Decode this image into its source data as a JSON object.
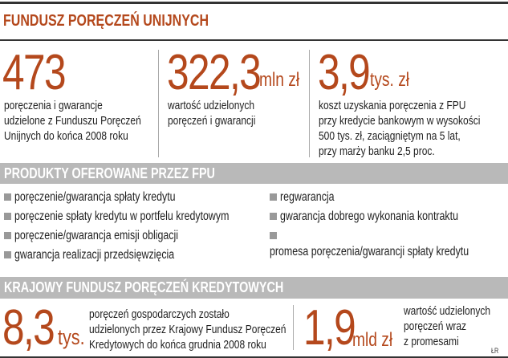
{
  "title": "FUNDUSZ PORĘCZEŃ UNIJNYCH",
  "accent_color": "#b4481c",
  "band_color": "#b9b9b9",
  "stats": [
    {
      "value": "473",
      "unit": "",
      "lines": [
        "poręczenia i gwarancje",
        "udzielone z Funduszu Poręczeń",
        "Unijnych do końca 2008 roku"
      ]
    },
    {
      "value": "322,3",
      "unit": "mln zł",
      "lines": [
        "wartość udzielonych",
        "poręczeń i gwarancji"
      ]
    },
    {
      "value": "3,9",
      "unit": "tys. zł",
      "lines": [
        "koszt uzyskania poręczenia z FPU",
        "przy kredycie bankowym w wysokości",
        "500 tys. zł, zaciągniętym na 5 lat,",
        "przy marży banku 2,5 proc."
      ]
    }
  ],
  "products": {
    "heading": "PRODUKTY OFEROWANE PRZEZ FPU",
    "items": [
      "poręczenie/gwarancja spłaty kredytu",
      "poręczenie spłaty kredytu w portfelu kredytowym",
      "poręczenie/gwarancja emisji obligacji",
      "gwarancja realizacji przedsięwzięcia",
      "regwarancja",
      "gwarancja dobrego wykonania kontraktu",
      "promesa poręczenia/gwarancji spłaty kredytu"
    ]
  },
  "kfpk": {
    "heading": "KRAJOWY FUNDUSZ PORĘCZEŃ KREDYTOWYCH",
    "stats": [
      {
        "value": "8,3",
        "unit": "tys.",
        "lines": [
          "poręczeń gospodarczych zostało",
          "udzielonych przez Krajowy Fundusz Poręczeń",
          "Kredytowych do końca grudnia 2008 roku"
        ]
      },
      {
        "value": "1,9",
        "unit": "mld zł",
        "lines": [
          "wartość udzielonych",
          "poręczeń wraz",
          "z promesami"
        ]
      }
    ]
  },
  "author": "ŁR"
}
